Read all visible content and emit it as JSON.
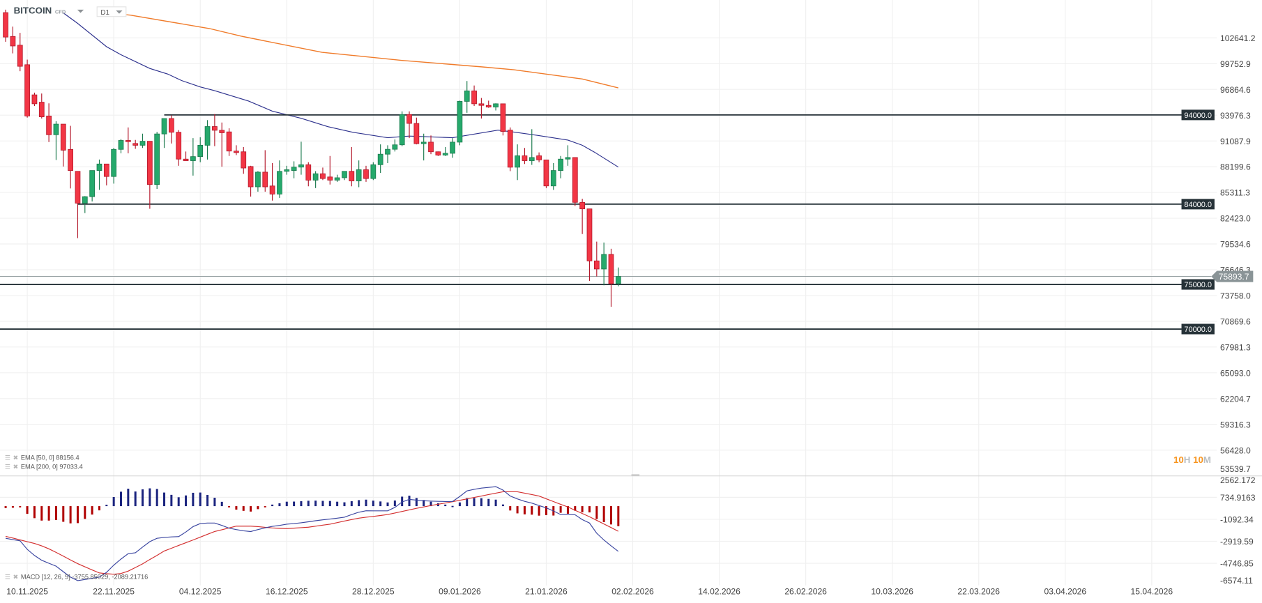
{
  "header": {
    "symbol": "BITCOIN",
    "instrument_type": "CFD",
    "timeframe": "D1"
  },
  "countdown": {
    "hours": "10",
    "hours_unit": "H",
    "minutes": "10",
    "minutes_unit": "M"
  },
  "legends": {
    "ema50": "EMA [50, 0] 88156.4",
    "ema200": "EMA [200, 0] 97033.4",
    "macd": "MACD [12, 26, 9] -3755.85029,  -2089.21716"
  },
  "icons": {
    "legend_menu": "hamburger-icon",
    "legend_remove": "close-icon",
    "dropdown": "chevron-down-icon"
  },
  "colors": {
    "bull": "#26a96c",
    "bull_border": "#1b7a4d",
    "bear": "#f23645",
    "bear_border": "#b3172a",
    "ema50": "#2b2f8c",
    "ema200": "#f07b2a",
    "level_line": "#263238",
    "last_price": "#8a9497",
    "macd_line": "#3a45a0",
    "signal_line": "#d32f2f",
    "hist_pos": "#1a237e",
    "hist_neg": "#b00000",
    "countdown": "#f7941d"
  },
  "chart_data": [
    {
      "type": "candlestick",
      "title": "",
      "price_ticks": [
        "102641.2",
        "99752.9",
        "96864.6",
        "93976.3",
        "91087.9",
        "88199.6",
        "85311.3",
        "82423.0",
        "79534.6",
        "76646.3",
        "73758.0",
        "70869.6",
        "67981.3",
        "65093.0",
        "62204.7",
        "59316.3",
        "56428.0",
        "53539.7"
      ],
      "date_ticks": [
        {
          "label": "10.11.2025",
          "bar": 3
        },
        {
          "label": "22.11.2025",
          "bar": 15
        },
        {
          "label": "04.12.2025",
          "bar": 27
        },
        {
          "label": "16.12.2025",
          "bar": 39
        },
        {
          "label": "28.12.2025",
          "bar": 51
        },
        {
          "label": "09.01.2026",
          "bar": 63
        },
        {
          "label": "21.01.2026",
          "bar": 75
        },
        {
          "label": "02.02.2026",
          "bar": 87
        },
        {
          "label": "14.02.2026",
          "bar": 99
        },
        {
          "label": "26.02.2026",
          "bar": 111
        },
        {
          "label": "10.03.2026",
          "bar": 123
        },
        {
          "label": "22.03.2026",
          "bar": 135
        },
        {
          "label": "03.04.2026",
          "bar": 147
        },
        {
          "label": "15.04.2026",
          "bar": 159
        }
      ],
      "ohlc": [
        [
          105470,
          105800,
          102200,
          102730
        ],
        [
          102800,
          103900,
          100900,
          101730
        ],
        [
          101820,
          103200,
          98900,
          99450
        ],
        [
          99630,
          100200,
          93700,
          93880
        ],
        [
          96250,
          96500,
          95000,
          95250
        ],
        [
          95430,
          96400,
          93600,
          93790
        ],
        [
          93880,
          95300,
          90960,
          91780
        ],
        [
          91780,
          93300,
          88950,
          92970
        ],
        [
          92970,
          92970,
          88220,
          90050
        ],
        [
          90140,
          92780,
          85760,
          87770
        ],
        [
          87680,
          87680,
          80190,
          84110
        ],
        [
          84110,
          84900,
          83000,
          84840
        ],
        [
          84840,
          87770,
          84300,
          87770
        ],
        [
          87770,
          89000,
          85600,
          88500
        ],
        [
          88500,
          88500,
          86100,
          87100
        ],
        [
          87100,
          90300,
          86300,
          90140
        ],
        [
          90140,
          91300,
          89700,
          91140
        ],
        [
          91140,
          92600,
          89700,
          91000
        ],
        [
          90800,
          91200,
          90200,
          90600
        ],
        [
          90600,
          91900,
          90300,
          91050
        ],
        [
          91050,
          91050,
          83480,
          86200
        ],
        [
          86200,
          92100,
          85700,
          91870
        ],
        [
          91870,
          93600,
          90300,
          93600
        ],
        [
          93600,
          93950,
          90800,
          92060
        ],
        [
          92060,
          92300,
          88300,
          89050
        ],
        [
          89050,
          89900,
          88900,
          88870
        ],
        [
          88870,
          91400,
          87200,
          89330
        ],
        [
          89330,
          91500,
          88700,
          90600
        ],
        [
          90600,
          93420,
          89000,
          92700
        ],
        [
          92700,
          94100,
          90500,
          92280
        ],
        [
          92280,
          93150,
          88200,
          92000
        ],
        [
          92100,
          92500,
          89400,
          89950
        ],
        [
          89950,
          90600,
          89500,
          89780
        ],
        [
          89870,
          90400,
          87400,
          88050
        ],
        [
          88220,
          88300,
          84850,
          85940
        ],
        [
          85940,
          87700,
          85400,
          87590
        ],
        [
          87590,
          90050,
          85400,
          85940
        ],
        [
          86040,
          88600,
          84400,
          85130
        ],
        [
          85130,
          88900,
          84700,
          87680
        ],
        [
          87680,
          88300,
          87300,
          87860
        ],
        [
          87770,
          88800,
          86900,
          88150
        ],
        [
          88150,
          91000,
          87300,
          88420
        ],
        [
          88420,
          88700,
          86000,
          86690
        ],
        [
          86690,
          87700,
          85800,
          87410
        ],
        [
          87410,
          88100,
          86700,
          86870
        ],
        [
          87050,
          89400,
          86200,
          86690
        ],
        [
          86690,
          87300,
          86500,
          86960
        ],
        [
          86960,
          87700,
          86700,
          87680
        ],
        [
          87680,
          90400,
          86000,
          86600
        ],
        [
          86600,
          88900,
          85900,
          87860
        ],
        [
          87860,
          88300,
          86500,
          86870
        ],
        [
          86870,
          88700,
          86700,
          88420
        ],
        [
          88420,
          90700,
          87500,
          89600
        ],
        [
          89600,
          90600,
          88600,
          90150
        ],
        [
          90150,
          91250,
          89900,
          90650
        ],
        [
          90650,
          94400,
          90500,
          94050
        ],
        [
          94050,
          94400,
          91400,
          93050
        ],
        [
          93050,
          93700,
          90700,
          90780
        ],
        [
          90780,
          91900,
          88900,
          90950
        ],
        [
          90950,
          91700,
          89600,
          89870
        ],
        [
          89870,
          89900,
          89400,
          89500
        ],
        [
          89500,
          90400,
          89400,
          89700
        ],
        [
          89700,
          91400,
          89200,
          90950
        ],
        [
          90950,
          95600,
          90600,
          95520
        ],
        [
          95520,
          97800,
          94240,
          96700
        ],
        [
          96700,
          97300,
          95000,
          95250
        ],
        [
          95250,
          95900,
          93600,
          95070
        ],
        [
          95070,
          95600,
          94800,
          94880
        ],
        [
          94880,
          95300,
          94500,
          95250
        ],
        [
          95250,
          95250,
          91700,
          92150
        ],
        [
          92300,
          92600,
          87700,
          88140
        ],
        [
          88140,
          90700,
          86700,
          89420
        ],
        [
          89420,
          90300,
          88500,
          88870
        ],
        [
          88870,
          92400,
          88400,
          89230
        ],
        [
          89420,
          89800,
          88700,
          88960
        ],
        [
          88960,
          88960,
          85800,
          86040
        ],
        [
          86040,
          88600,
          85600,
          87770
        ],
        [
          87770,
          89400,
          86900,
          89050
        ],
        [
          89050,
          90600,
          88300,
          89230
        ],
        [
          89230,
          89230,
          83800,
          84200
        ],
        [
          84200,
          84600,
          80650,
          83470
        ],
        [
          83470,
          83470,
          75400,
          77640
        ],
        [
          77640,
          79800,
          75900,
          76730
        ],
        [
          76730,
          79700,
          74900,
          78370
        ],
        [
          78370,
          79000,
          72500,
          75080
        ],
        [
          75080,
          76900,
          74800,
          75893.7
        ]
      ],
      "ema50": [
        [
          8,
          105440
        ],
        [
          10,
          104260
        ],
        [
          14,
          101650
        ],
        [
          16,
          100750
        ],
        [
          20,
          99210
        ],
        [
          22.5,
          98580
        ],
        [
          24.4,
          97860
        ],
        [
          27,
          97140
        ],
        [
          29,
          96720
        ],
        [
          33.7,
          95560
        ],
        [
          37,
          94430
        ],
        [
          41,
          93620
        ],
        [
          44.7,
          92690
        ],
        [
          48.3,
          92040
        ],
        [
          53,
          91450
        ],
        [
          56,
          91630
        ],
        [
          62,
          91450
        ],
        [
          68.3,
          92300
        ],
        [
          70.5,
          92080
        ],
        [
          73.7,
          91720
        ],
        [
          78,
          91180
        ],
        [
          80,
          90600
        ],
        [
          81.7,
          89820
        ],
        [
          85,
          88156.4
        ]
      ],
      "ema200": [
        [
          13,
          105500
        ],
        [
          17.3,
          105190
        ],
        [
          28.3,
          103680
        ],
        [
          32.7,
          102820
        ],
        [
          43.9,
          101020
        ],
        [
          55,
          100110
        ],
        [
          66,
          99390
        ],
        [
          70.5,
          99070
        ],
        [
          80,
          98030
        ],
        [
          85,
          97033.4
        ]
      ],
      "last_price": "75893.7",
      "levels": [
        {
          "value": 94000,
          "label": "94000.0",
          "from_bar": 22
        },
        {
          "value": 84000,
          "label": "84000.0",
          "from_bar": 10
        },
        {
          "value": 75000,
          "label": "75000.0",
          "from_bar": -1
        },
        {
          "value": 70000,
          "label": "70000.0",
          "from_bar": -1
        }
      ]
    },
    {
      "type": "macd",
      "title": "",
      "ticks": [
        "2562.172",
        "734.9163",
        "-1092.34",
        "-2919.59",
        "-4746.85",
        "-6574.11"
      ],
      "macd": [
        -2670,
        -2780,
        -2880,
        -3590,
        -4100,
        -4500,
        -4750,
        -4990,
        -5450,
        -5900,
        -6190,
        -6100,
        -6000,
        -5900,
        -5500,
        -4900,
        -4400,
        -3950,
        -3880,
        -3400,
        -2950,
        -2670,
        -2600,
        -2560,
        -2530,
        -2150,
        -1700,
        -1450,
        -1410,
        -1410,
        -1600,
        -1830,
        -1950,
        -2050,
        -2110,
        -1950,
        -1800,
        -1680,
        -1600,
        -1500,
        -1450,
        -1380,
        -1300,
        -1210,
        -1140,
        -1070,
        -1000,
        -920,
        -700,
        -500,
        -380,
        -390,
        -390,
        -390,
        -100,
        350,
        560,
        500,
        450,
        420,
        400,
        390,
        390,
        800,
        1270,
        1400,
        1500,
        1560,
        1620,
        1340,
        840,
        600,
        400,
        250,
        50,
        -140,
        -400,
        -700,
        -700,
        -720,
        -1120,
        -1400,
        -2250,
        -2810,
        -3300,
        -3755.85
      ],
      "signal": [
        -2510,
        -2650,
        -2800,
        -2950,
        -3100,
        -3300,
        -3550,
        -3840,
        -4150,
        -4470,
        -4780,
        -5040,
        -5300,
        -5550,
        -5620,
        -5660,
        -5600,
        -5400,
        -5100,
        -4800,
        -4430,
        -4100,
        -3730,
        -3500,
        -3270,
        -3040,
        -2810,
        -2580,
        -2340,
        -2110,
        -1960,
        -1810,
        -1660,
        -1660,
        -1660,
        -1700,
        -1760,
        -1810,
        -1840,
        -1870,
        -1830,
        -1790,
        -1750,
        -1670,
        -1580,
        -1500,
        -1370,
        -1240,
        -1110,
        -1000,
        -920,
        -850,
        -780,
        -700,
        -570,
        -440,
        -310,
        -180,
        -60,
        50,
        160,
        260,
        370,
        490,
        600,
        720,
        840,
        960,
        1080,
        1200,
        1200,
        1200,
        1080,
        960,
        840,
        610,
        380,
        150,
        -70,
        -340,
        -610,
        -880,
        -1180,
        -1480,
        -1780,
        -2089.22
      ],
      "histogram": [
        -160,
        -130,
        -80,
        -640,
        -1000,
        -1200,
        -1200,
        -1150,
        -1300,
        -1430,
        -1410,
        -1060,
        -700,
        -350,
        120,
        760,
        1200,
        1450,
        1220,
        1400,
        1480,
        1430,
        1130,
        940,
        740,
        890,
        1110,
        1130,
        930,
        700,
        360,
        -20,
        -290,
        -390,
        -450,
        -250,
        -40,
        130,
        240,
        370,
        380,
        410,
        450,
        460,
        440,
        430,
        370,
        320,
        410,
        500,
        540,
        460,
        390,
        310,
        470,
        790,
        870,
        680,
        510,
        370,
        240,
        130,
        20,
        310,
        670,
        680,
        660,
        600,
        540,
        140,
        -360,
        -600,
        -680,
        -710,
        -790,
        -750,
        -780,
        -550,
        -630,
        -380,
        -510,
        -520,
        -1070,
        -1330,
        -1520,
        -1667
      ]
    }
  ]
}
